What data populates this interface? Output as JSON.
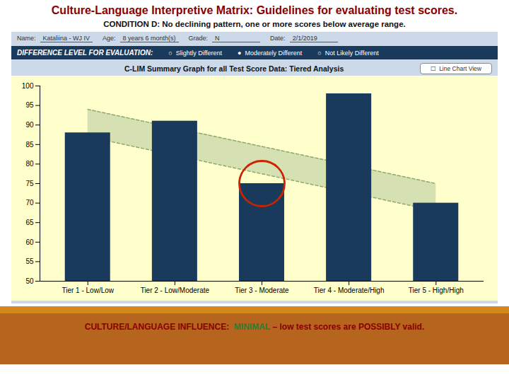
{
  "chart_data": {
    "type": "bar",
    "title": "Culture-Language Interpretive Matrix: Guidelines for evaluating test scores.",
    "subtitle": "CONDITION D: No declining pattern, one or more scores below average range.",
    "categories": [
      "Tier 1 - Low/Low",
      "Tier 2 - Low/Moderate",
      "Tier 3 - Moderate",
      "Tier 4 - Moderate/High",
      "Tier 5 - High/High"
    ],
    "values": [
      88,
      91,
      75,
      98,
      70
    ],
    "color": "#1a3a5c",
    "ylim": [
      50,
      100
    ],
    "yticks": [
      50,
      55,
      60,
      65,
      70,
      75,
      80,
      85,
      90,
      95,
      100
    ],
    "grid": false,
    "band": {
      "top": [
        94,
        75
      ],
      "bottom": [
        87,
        68
      ]
    },
    "highlight": {
      "index": 2,
      "color": "#cc2200"
    },
    "annotations": {
      "fields": [
        {
          "label": "Name:",
          "value": "Kataliina - WJ IV"
        },
        {
          "label": "Age:",
          "value": "8 years 6 month(s)"
        },
        {
          "label": "Grade:",
          "value": "N"
        },
        {
          "label": "Date:",
          "value": "2/1/2019"
        }
      ],
      "header": "DIFFERENCE LEVEL FOR EVALUATION:",
      "header_options": [
        "○  Slightly Different",
        "●  Moderately Different",
        "○  Not Likely Different"
      ],
      "graph_title": "C-LIM Summary Graph for all Test Score Data: Tiered Analysis",
      "button": "☐  Line Chart View",
      "footer": [
        {
          "text": "CULTURE/LANGUAGE INFLUENCE:  ",
          "color": "#8b0000"
        },
        {
          "text": "MINIMAL",
          "color": "#2e7d32"
        },
        {
          "text": " – low test scores are POSSIBLY valid.",
          "color": "#8b0000"
        }
      ]
    }
  }
}
